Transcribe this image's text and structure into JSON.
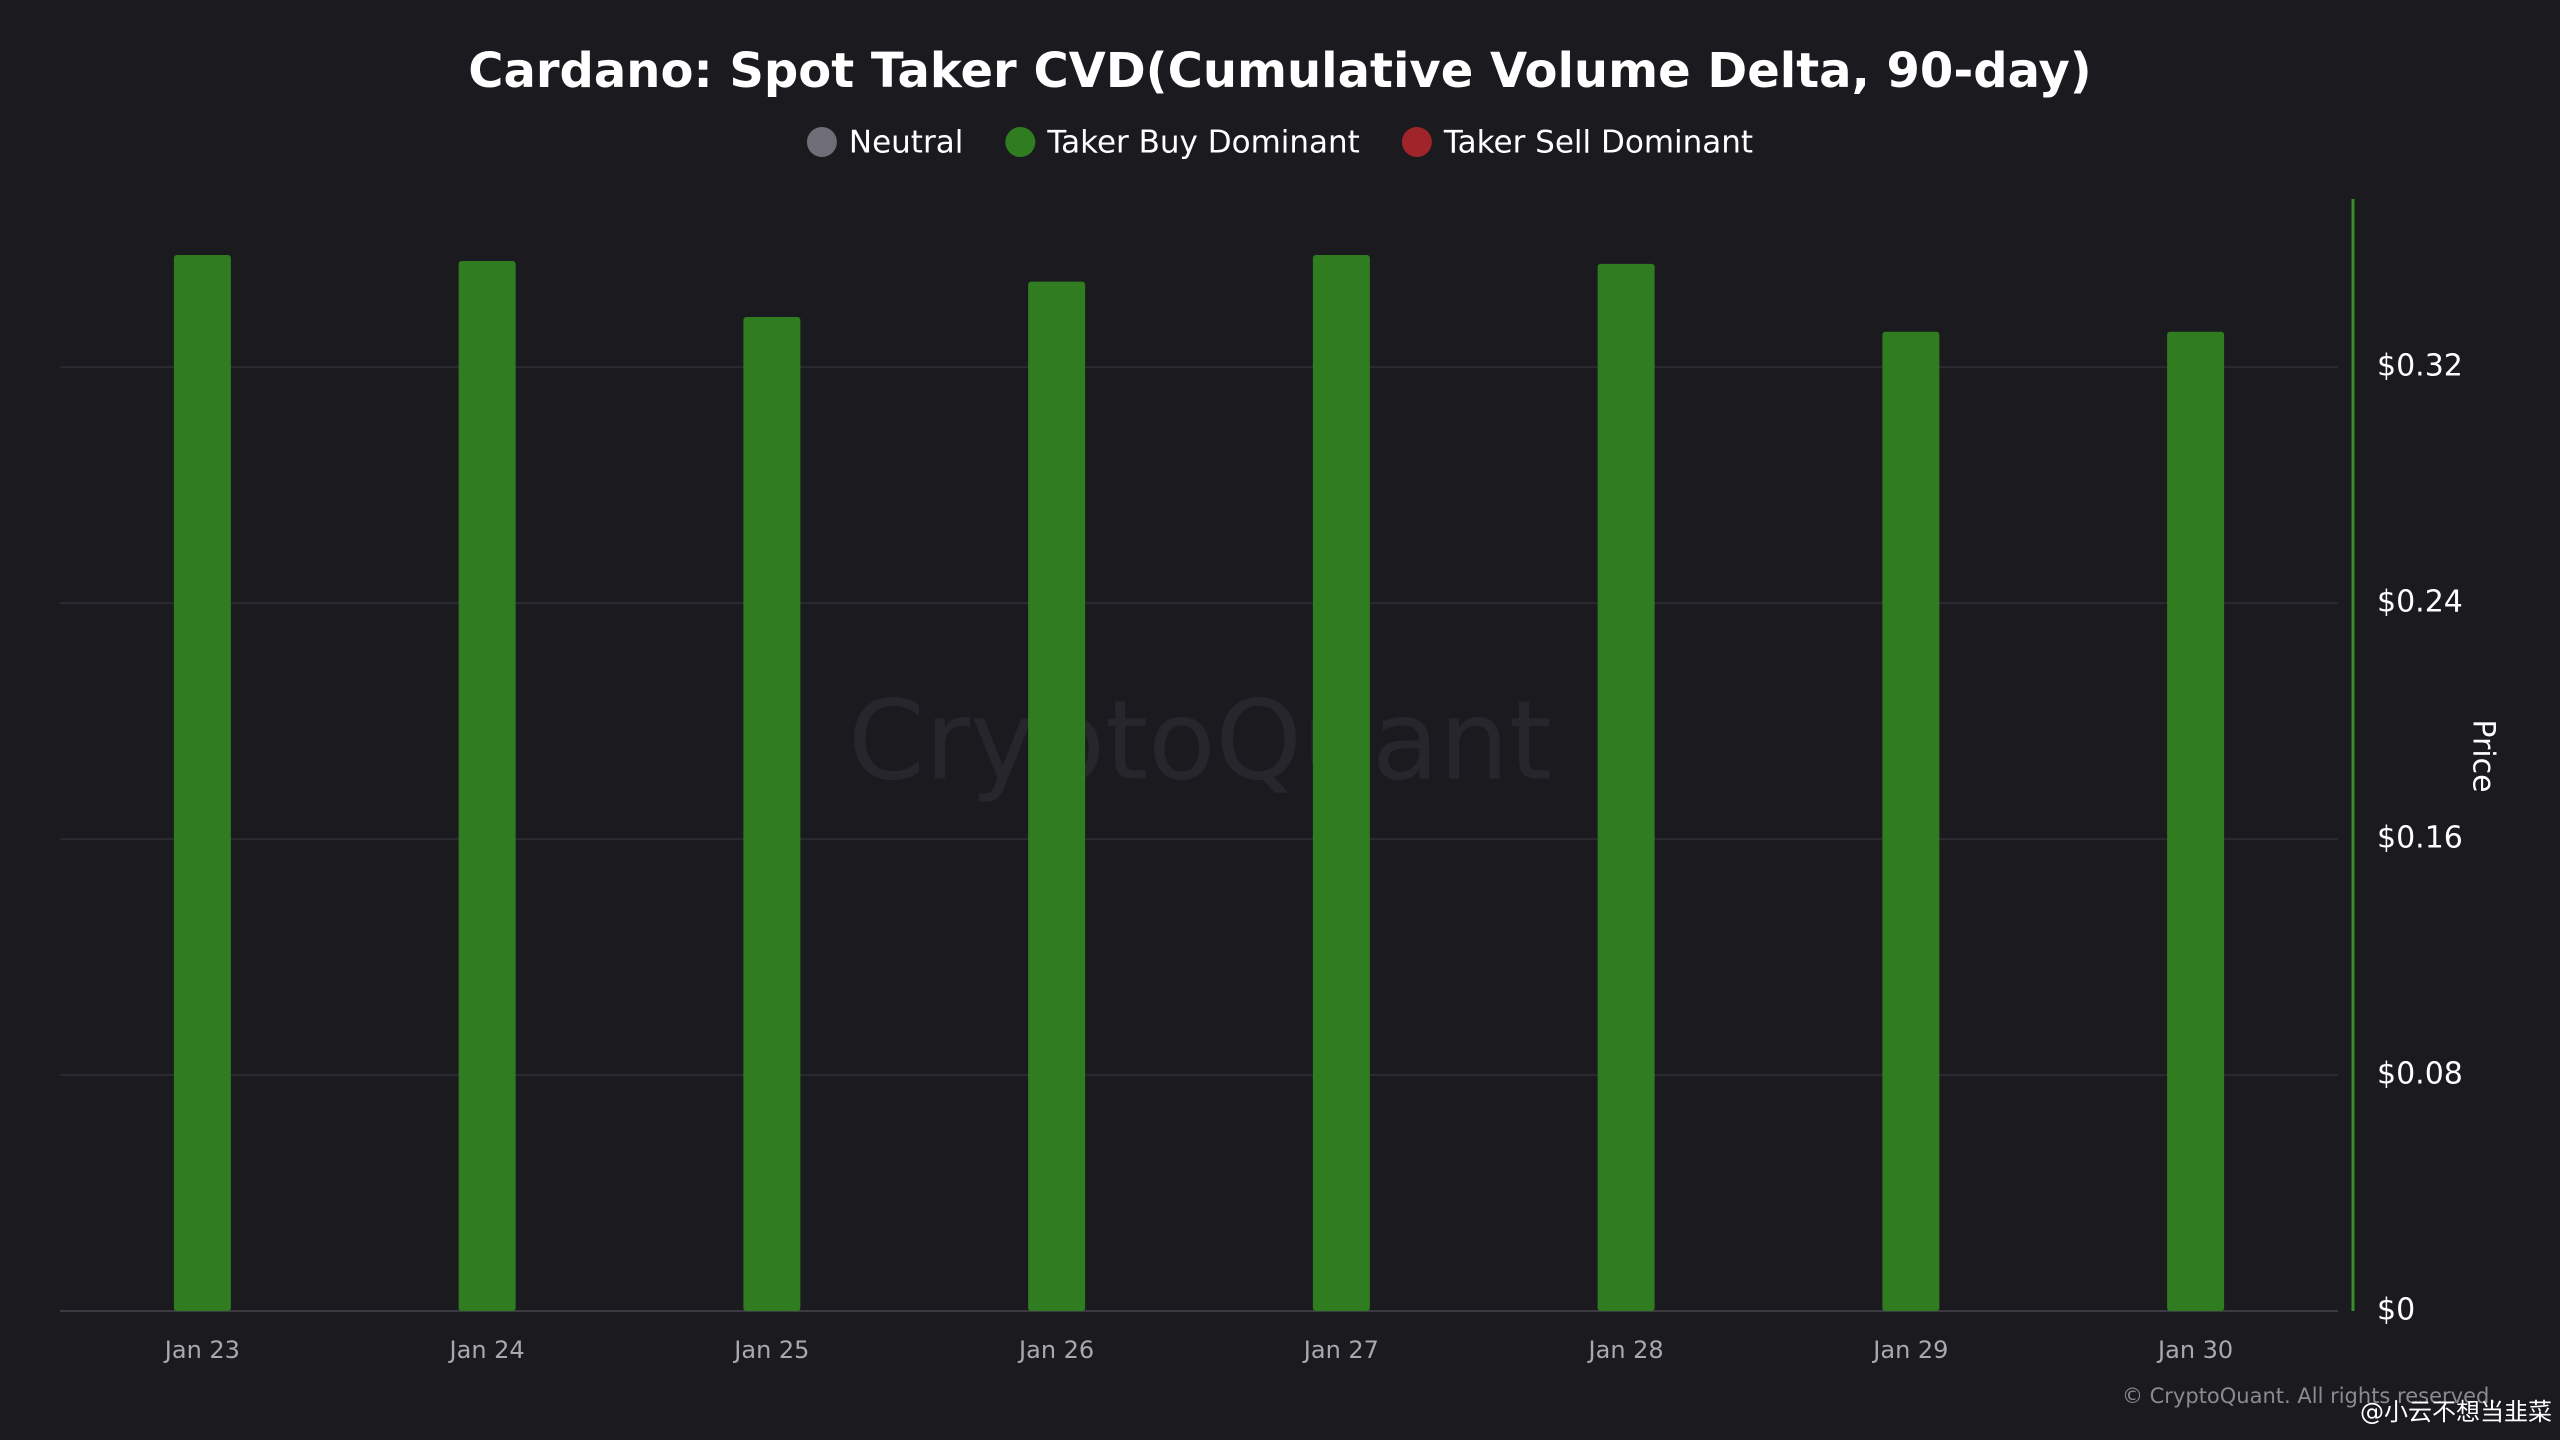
{
  "chart_data": {
    "type": "bar",
    "title": "Cardano: Spot Taker CVD(Cumulative Volume Delta, 90-day)",
    "categories": [
      "Jan 23",
      "Jan 24",
      "Jan 25",
      "Jan 26",
      "Jan 27",
      "Jan 28",
      "Jan 29",
      "Jan 30"
    ],
    "series": [
      {
        "name": "Neutral",
        "color": "#6f6e76",
        "values": [
          null,
          null,
          null,
          null,
          null,
          null,
          null,
          null
        ]
      },
      {
        "name": "Taker Buy Dominant",
        "color": "#2f7d20",
        "values": [
          0.358,
          0.356,
          0.337,
          0.349,
          0.358,
          0.355,
          0.332,
          0.332
        ]
      },
      {
        "name": "Taker Sell Dominant",
        "color": "#a0252a",
        "values": [
          null,
          null,
          null,
          null,
          null,
          null,
          null,
          null
        ]
      }
    ],
    "y_label": "Price",
    "ylim": [
      0,
      0.377
    ],
    "yticks": [
      {
        "value": 0,
        "label": "$0"
      },
      {
        "value": 0.08,
        "label": "$0.08"
      },
      {
        "value": 0.16,
        "label": "$0.16"
      },
      {
        "value": 0.24,
        "label": "$0.24"
      },
      {
        "value": 0.32,
        "label": "$0.32"
      }
    ],
    "grid": true,
    "legend": "top",
    "watermark": "CryptoQuant",
    "footer": "© CryptoQuant. All rights reserved.",
    "source_watermark": "@小云不想当韭菜"
  }
}
